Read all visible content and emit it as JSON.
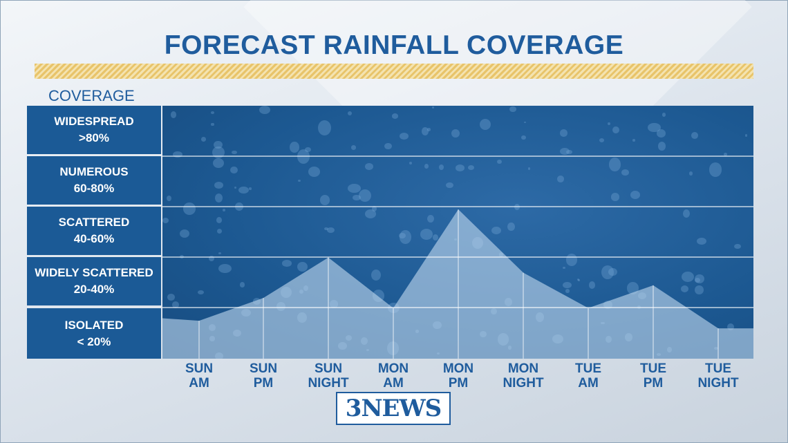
{
  "title": "FORECAST RAINFALL COVERAGE",
  "coverage_label": "COVERAGE",
  "categories": [
    {
      "name": "WIDESPREAD",
      "range": ">80%"
    },
    {
      "name": "NUMEROUS",
      "range": "60-80%"
    },
    {
      "name": "SCATTERED",
      "range": "40-60%"
    },
    {
      "name": "WIDELY SCATTERED",
      "range": "20-40%"
    },
    {
      "name": "ISOLATED",
      "range": "< 20%"
    }
  ],
  "logo_text": "3NEWS",
  "colors": {
    "title": "#1f5c9d",
    "box": "#1b5a96",
    "area": "#b9d3ea"
  },
  "chart_data": {
    "type": "area",
    "title": "FORECAST RAINFALL COVERAGE",
    "ylabel": "COVERAGE",
    "ylim": [
      0,
      100
    ],
    "x": [
      "SUN AM",
      "SUN PM",
      "SUN NIGHT",
      "MON AM",
      "MON PM",
      "MON NIGHT",
      "TUE AM",
      "TUE PM",
      "TUE NIGHT"
    ],
    "x_lines": [
      [
        "SUN",
        "AM"
      ],
      [
        "SUN",
        "PM"
      ],
      [
        "SUN",
        "NIGHT"
      ],
      [
        "MON",
        "AM"
      ],
      [
        "MON",
        "PM"
      ],
      [
        "MON",
        "NIGHT"
      ],
      [
        "TUE",
        "AM"
      ],
      [
        "TUE",
        "PM"
      ],
      [
        "TUE",
        "NIGHT"
      ]
    ],
    "series": [
      {
        "values": [
          15,
          24,
          40,
          20,
          59,
          34,
          20,
          29,
          12
        ]
      }
    ],
    "start_value": 16,
    "grid": true
  }
}
